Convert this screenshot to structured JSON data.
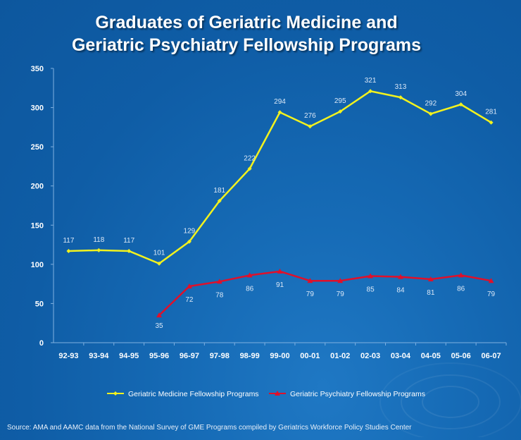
{
  "title_line1": "Graduates of Geriatric Medicine and",
  "title_line2": "Geriatric Psychiatry Fellowship Programs",
  "source": "Source:  AMA and AAMC data from the National Survey of GME Programs compiled by Geriatrics Workforce Policy Studies Center",
  "colors": {
    "medicine": "#f2f21e",
    "psychiatry": "#e0102a",
    "text": "#ffffff"
  },
  "chart_data": {
    "type": "line",
    "categories": [
      "92-93",
      "93-94",
      "94-95",
      "95-96",
      "96-97",
      "97-98",
      "98-99",
      "99-00",
      "00-01",
      "01-02",
      "02-03",
      "03-04",
      "04-05",
      "05-06",
      "06-07"
    ],
    "ylim": [
      0,
      350
    ],
    "yticks": [
      0,
      50,
      100,
      150,
      200,
      250,
      300,
      350
    ],
    "legend_position": "bottom",
    "series": [
      {
        "name": "Geriatric Medicine Fellowship Programs",
        "values": [
          117,
          118,
          117,
          101,
          129,
          181,
          222,
          294,
          276,
          295,
          321,
          313,
          292,
          304,
          281
        ]
      },
      {
        "name": "Geriatric Psychiatry Fellowship Programs",
        "values": [
          null,
          null,
          null,
          35,
          72,
          78,
          86,
          91,
          79,
          79,
          85,
          84,
          81,
          86,
          79
        ]
      }
    ]
  }
}
